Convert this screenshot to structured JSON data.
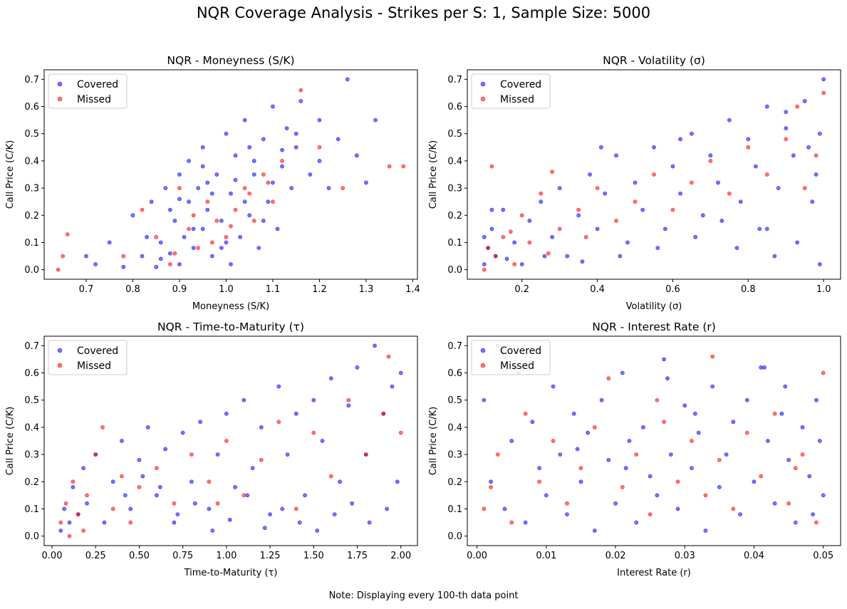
{
  "figure": {
    "title": "NQR Coverage Analysis - Strikes per S: 1, Sample Size: 5000",
    "footnote": "Note: Displaying every 100-th data point"
  },
  "colors": {
    "covered": "#0000ff",
    "missed": "#ff0000"
  },
  "chart_data": [
    {
      "type": "scatter",
      "title": "NQR - Moneyness (S/K)",
      "xlabel": "Moneyness (S/K)",
      "ylabel": "Call Price (C/K)",
      "xlim": [
        0.61,
        1.41
      ],
      "ylim": [
        -0.035,
        0.735
      ],
      "xticks": [
        0.7,
        0.8,
        0.9,
        1.0,
        1.1,
        1.2,
        1.3,
        1.4
      ],
      "xtick_labels": [
        "0.7",
        "0.8",
        "0.9",
        "1.0",
        "1.1",
        "1.2",
        "1.3",
        "1.4"
      ],
      "yticks": [
        0.0,
        0.1,
        0.2,
        0.3,
        0.4,
        0.5,
        0.6,
        0.7
      ],
      "ytick_labels": [
        "0.0",
        "0.1",
        "0.2",
        "0.3",
        "0.4",
        "0.5",
        "0.6",
        "0.7"
      ],
      "legend": "upper-left",
      "grid": false,
      "series": [
        {
          "name": "Covered",
          "color": "#0000ff",
          "x": [
            0.7,
            0.72,
            0.75,
            0.78,
            0.8,
            0.82,
            0.84,
            0.85,
            0.86,
            0.87,
            0.88,
            0.89,
            0.9,
            0.9,
            0.91,
            0.92,
            0.92,
            0.93,
            0.94,
            0.95,
            0.95,
            0.96,
            0.97,
            0.98,
            0.99,
            1.0,
            1.0,
            1.01,
            1.02,
            1.03,
            1.04,
            1.05,
            1.06,
            1.07,
            1.08,
            1.09,
            1.1,
            1.11,
            1.12,
            1.13,
            1.14,
            1.15,
            1.16,
            1.18,
            1.2,
            1.22,
            1.24,
            1.26,
            1.28,
            1.3,
            1.32,
            0.88,
            0.93,
            0.97,
            1.02,
            1.06,
            0.95,
            0.99,
            1.04,
            1.08,
            1.12,
            0.83,
            0.86,
            0.9,
            0.96,
            1.01,
            1.05,
            1.1,
            1.15,
            1.2
          ],
          "y": [
            0.05,
            0.02,
            0.1,
            0.01,
            0.2,
            0.05,
            0.25,
            0.01,
            0.1,
            0.3,
            0.06,
            0.18,
            0.02,
            0.35,
            0.12,
            0.25,
            0.4,
            0.08,
            0.3,
            0.15,
            0.45,
            0.22,
            0.05,
            0.35,
            0.18,
            0.5,
            0.1,
            0.28,
            0.42,
            0.12,
            0.55,
            0.2,
            0.35,
            0.08,
            0.48,
            0.25,
            0.6,
            0.15,
            0.38,
            0.52,
            0.3,
            0.45,
            0.62,
            0.35,
            0.55,
            0.3,
            0.48,
            0.7,
            0.42,
            0.32,
            0.55,
            0.22,
            0.15,
            0.28,
            0.33,
            0.4,
            0.38,
            0.08,
            0.25,
            0.18,
            0.44,
            0.12,
            0.04,
            0.26,
            0.32,
            0.02,
            0.45,
            0.32,
            0.5,
            0.4
          ]
        },
        {
          "name": "Missed",
          "color": "#ff0000",
          "x": [
            0.64,
            0.65,
            0.66,
            0.78,
            0.82,
            0.85,
            0.88,
            0.9,
            0.92,
            0.94,
            0.96,
            0.98,
            1.0,
            1.02,
            1.04,
            1.06,
            1.08,
            1.1,
            1.12,
            1.16,
            1.2,
            1.25,
            1.35,
            1.38,
            0.93,
            0.97,
            1.01,
            1.05,
            0.89,
            1.09
          ],
          "y": [
            0.0,
            0.05,
            0.13,
            0.05,
            0.22,
            0.12,
            0.02,
            0.3,
            0.15,
            0.08,
            0.25,
            0.18,
            0.12,
            0.22,
            0.3,
            0.18,
            0.35,
            0.25,
            0.4,
            0.66,
            0.45,
            0.3,
            0.38,
            0.38,
            0.2,
            0.1,
            0.16,
            0.28,
            0.06,
            0.32
          ]
        }
      ]
    },
    {
      "type": "scatter",
      "title": "NQR - Volatility (σ)",
      "xlabel": "Volatility (σ)",
      "ylabel": "Call Price (C/K)",
      "xlim": [
        0.055,
        1.045
      ],
      "ylim": [
        -0.035,
        0.735
      ],
      "xticks": [
        0.2,
        0.4,
        0.6,
        0.8,
        1.0
      ],
      "xtick_labels": [
        "0.2",
        "0.4",
        "0.6",
        "0.8",
        "1.0"
      ],
      "yticks": [
        0.0,
        0.1,
        0.2,
        0.3,
        0.4,
        0.5,
        0.6,
        0.7
      ],
      "ytick_labels": [
        "0.0",
        "0.1",
        "0.2",
        "0.3",
        "0.4",
        "0.5",
        "0.6",
        "0.7"
      ],
      "legend": "upper-left",
      "grid": false,
      "series": [
        {
          "name": "Covered",
          "color": "#0000ff",
          "x": [
            0.1,
            0.11,
            0.12,
            0.13,
            0.15,
            0.18,
            0.2,
            0.22,
            0.25,
            0.28,
            0.3,
            0.32,
            0.35,
            0.38,
            0.4,
            0.42,
            0.45,
            0.48,
            0.5,
            0.52,
            0.55,
            0.58,
            0.6,
            0.62,
            0.65,
            0.68,
            0.7,
            0.72,
            0.75,
            0.78,
            0.8,
            0.82,
            0.85,
            0.88,
            0.9,
            0.92,
            0.95,
            0.98,
            1.0,
            0.99,
            0.97,
            0.93,
            0.87,
            0.83,
            0.77,
            0.73,
            0.66,
            0.56,
            0.46,
            0.36,
            0.26,
            0.16,
            0.12,
            0.1,
            0.99,
            0.96,
            0.9,
            0.85,
            0.62,
            0.41
          ],
          "y": [
            0.02,
            0.08,
            0.15,
            0.05,
            0.22,
            0.1,
            0.02,
            0.18,
            0.25,
            0.12,
            0.3,
            0.05,
            0.2,
            0.35,
            0.15,
            0.28,
            0.42,
            0.1,
            0.32,
            0.22,
            0.45,
            0.15,
            0.38,
            0.28,
            0.5,
            0.2,
            0.42,
            0.32,
            0.55,
            0.25,
            0.48,
            0.38,
            0.6,
            0.3,
            0.52,
            0.42,
            0.62,
            0.35,
            0.7,
            0.5,
            0.25,
            0.1,
            0.05,
            0.15,
            0.08,
            0.18,
            0.12,
            0.08,
            0.05,
            0.03,
            0.05,
            0.04,
            0.22,
            0.12,
            0.02,
            0.45,
            0.58,
            0.15,
            0.48,
            0.45
          ]
        },
        {
          "name": "Missed",
          "color": "#ff0000",
          "x": [
            0.1,
            0.12,
            0.13,
            0.15,
            0.18,
            0.2,
            0.22,
            0.25,
            0.28,
            0.3,
            0.35,
            0.4,
            0.45,
            0.5,
            0.55,
            0.6,
            0.65,
            0.7,
            0.75,
            0.8,
            0.85,
            0.9,
            0.93,
            0.95,
            0.98,
            1.0,
            0.11,
            0.17,
            0.27,
            0.37
          ],
          "y": [
            0.0,
            0.38,
            0.05,
            0.12,
            0.02,
            0.2,
            0.1,
            0.28,
            0.36,
            0.15,
            0.22,
            0.3,
            0.18,
            0.25,
            0.35,
            0.22,
            0.32,
            0.4,
            0.28,
            0.45,
            0.35,
            0.48,
            0.6,
            0.3,
            0.42,
            0.65,
            0.08,
            0.14,
            0.06,
            0.12
          ]
        }
      ]
    },
    {
      "type": "scatter",
      "title": "NQR - Time-to-Maturity (τ)",
      "xlabel": "Time-to-Maturity (τ)",
      "ylabel": "Call Price (C/K)",
      "xlim": [
        -0.045,
        2.095
      ],
      "ylim": [
        -0.035,
        0.735
      ],
      "xticks": [
        0.0,
        0.25,
        0.5,
        0.75,
        1.0,
        1.25,
        1.5,
        1.75,
        2.0
      ],
      "xtick_labels": [
        "0.00",
        "0.25",
        "0.50",
        "0.75",
        "1.00",
        "1.25",
        "1.50",
        "1.75",
        "2.00"
      ],
      "yticks": [
        0.0,
        0.1,
        0.2,
        0.3,
        0.4,
        0.5,
        0.6,
        0.7
      ],
      "ytick_labels": [
        "0.0",
        "0.1",
        "0.2",
        "0.3",
        "0.4",
        "0.5",
        "0.6",
        "0.7"
      ],
      "legend": "upper-left",
      "grid": false,
      "series": [
        {
          "name": "Covered",
          "color": "#0000ff",
          "x": [
            0.05,
            0.07,
            0.1,
            0.12,
            0.15,
            0.18,
            0.2,
            0.25,
            0.3,
            0.35,
            0.4,
            0.45,
            0.5,
            0.55,
            0.6,
            0.65,
            0.7,
            0.75,
            0.8,
            0.85,
            0.9,
            0.95,
            1.0,
            1.05,
            1.1,
            1.15,
            1.2,
            1.25,
            1.3,
            1.35,
            1.4,
            1.45,
            1.5,
            1.55,
            1.6,
            1.65,
            1.7,
            1.75,
            1.8,
            1.85,
            1.9,
            1.95,
            2.0,
            1.98,
            1.92,
            1.82,
            1.72,
            1.62,
            1.52,
            1.42,
            1.32,
            1.22,
            1.12,
            1.02,
            0.92,
            0.82,
            0.72,
            0.62,
            0.52,
            0.42
          ],
          "y": [
            0.02,
            0.1,
            0.05,
            0.18,
            0.08,
            0.25,
            0.12,
            0.3,
            0.05,
            0.2,
            0.35,
            0.1,
            0.28,
            0.4,
            0.15,
            0.32,
            0.05,
            0.38,
            0.2,
            0.42,
            0.1,
            0.3,
            0.45,
            0.18,
            0.5,
            0.25,
            0.4,
            0.08,
            0.55,
            0.3,
            0.45,
            0.15,
            0.5,
            0.35,
            0.58,
            0.2,
            0.48,
            0.62,
            0.3,
            0.7,
            0.45,
            0.55,
            0.6,
            0.2,
            0.1,
            0.05,
            0.12,
            0.08,
            0.02,
            0.05,
            0.1,
            0.03,
            0.15,
            0.06,
            0.02,
            0.12,
            0.08,
            0.18,
            0.22,
            0.15
          ]
        },
        {
          "name": "Missed",
          "color": "#ff0000",
          "x": [
            0.05,
            0.08,
            0.1,
            0.12,
            0.15,
            0.2,
            0.25,
            0.29,
            0.35,
            0.4,
            0.5,
            0.6,
            0.7,
            0.8,
            0.9,
            1.0,
            1.1,
            1.2,
            1.3,
            1.4,
            1.5,
            1.6,
            1.7,
            1.8,
            1.9,
            1.93,
            2.0,
            0.18,
            0.45,
            0.95
          ],
          "y": [
            0.05,
            0.12,
            0.0,
            0.2,
            0.08,
            0.15,
            0.3,
            0.4,
            0.1,
            0.22,
            0.18,
            0.25,
            0.12,
            0.3,
            0.2,
            0.35,
            0.15,
            0.28,
            0.42,
            0.1,
            0.38,
            0.22,
            0.5,
            0.3,
            0.45,
            0.66,
            0.38,
            0.02,
            0.05,
            0.12
          ]
        }
      ]
    },
    {
      "type": "scatter",
      "title": "NQR - Interest Rate (r)",
      "xlabel": "Interest Rate (r)",
      "ylabel": "Call Price (C/K)",
      "xlim": [
        -0.0014,
        0.0525
      ],
      "ylim": [
        -0.035,
        0.735
      ],
      "xticks": [
        0.0,
        0.01,
        0.02,
        0.03,
        0.04,
        0.05
      ],
      "xtick_labels": [
        "0.00",
        "0.01",
        "0.02",
        "0.03",
        "0.04",
        "0.05"
      ],
      "yticks": [
        0.0,
        0.1,
        0.2,
        0.3,
        0.4,
        0.5,
        0.6,
        0.7
      ],
      "ytick_labels": [
        "0.0",
        "0.1",
        "0.2",
        "0.3",
        "0.4",
        "0.5",
        "0.6",
        "0.7"
      ],
      "legend": "upper-left",
      "grid": false,
      "series": [
        {
          "name": "Covered",
          "color": "#0000ff",
          "x": [
            0.001,
            0.002,
            0.003,
            0.004,
            0.005,
            0.006,
            0.007,
            0.008,
            0.009,
            0.01,
            0.011,
            0.012,
            0.013,
            0.014,
            0.015,
            0.016,
            0.017,
            0.018,
            0.019,
            0.02,
            0.021,
            0.022,
            0.023,
            0.024,
            0.025,
            0.026,
            0.027,
            0.028,
            0.029,
            0.03,
            0.031,
            0.032,
            0.033,
            0.034,
            0.035,
            0.036,
            0.037,
            0.038,
            0.039,
            0.04,
            0.041,
            0.042,
            0.043,
            0.044,
            0.045,
            0.046,
            0.047,
            0.048,
            0.049,
            0.05,
            0.0035,
            0.0055,
            0.0145,
            0.0215,
            0.0275,
            0.0315,
            0.0415,
            0.0445,
            0.0485,
            0.0495
          ],
          "y": [
            0.5,
            0.2,
            0.7,
            0.1,
            0.35,
            0.6,
            0.05,
            0.42,
            0.25,
            0.15,
            0.55,
            0.3,
            0.08,
            0.45,
            0.2,
            0.38,
            0.02,
            0.5,
            0.28,
            0.12,
            0.6,
            0.35,
            0.05,
            0.4,
            0.22,
            0.15,
            0.65,
            0.3,
            0.1,
            0.48,
            0.25,
            0.38,
            0.02,
            0.55,
            0.18,
            0.3,
            0.42,
            0.08,
            0.5,
            0.2,
            0.62,
            0.35,
            0.12,
            0.45,
            0.28,
            0.05,
            0.4,
            0.22,
            0.5,
            0.15,
            0.68,
            0.62,
            0.32,
            0.25,
            0.58,
            0.45,
            0.62,
            0.55,
            0.08,
            0.35
          ]
        },
        {
          "name": "Missed",
          "color": "#ff0000",
          "x": [
            0.001,
            0.003,
            0.005,
            0.007,
            0.009,
            0.011,
            0.013,
            0.015,
            0.017,
            0.019,
            0.021,
            0.023,
            0.025,
            0.027,
            0.029,
            0.031,
            0.033,
            0.034,
            0.035,
            0.037,
            0.039,
            0.041,
            0.043,
            0.045,
            0.047,
            0.049,
            0.05,
            0.002,
            0.026,
            0.046
          ],
          "y": [
            0.1,
            0.3,
            0.05,
            0.45,
            0.2,
            0.35,
            0.12,
            0.25,
            0.4,
            0.58,
            0.18,
            0.3,
            0.08,
            0.42,
            0.2,
            0.35,
            0.15,
            0.66,
            0.28,
            0.1,
            0.38,
            0.22,
            0.45,
            0.12,
            0.3,
            0.05,
            0.6,
            0.18,
            0.5,
            0.25
          ]
        }
      ]
    }
  ]
}
